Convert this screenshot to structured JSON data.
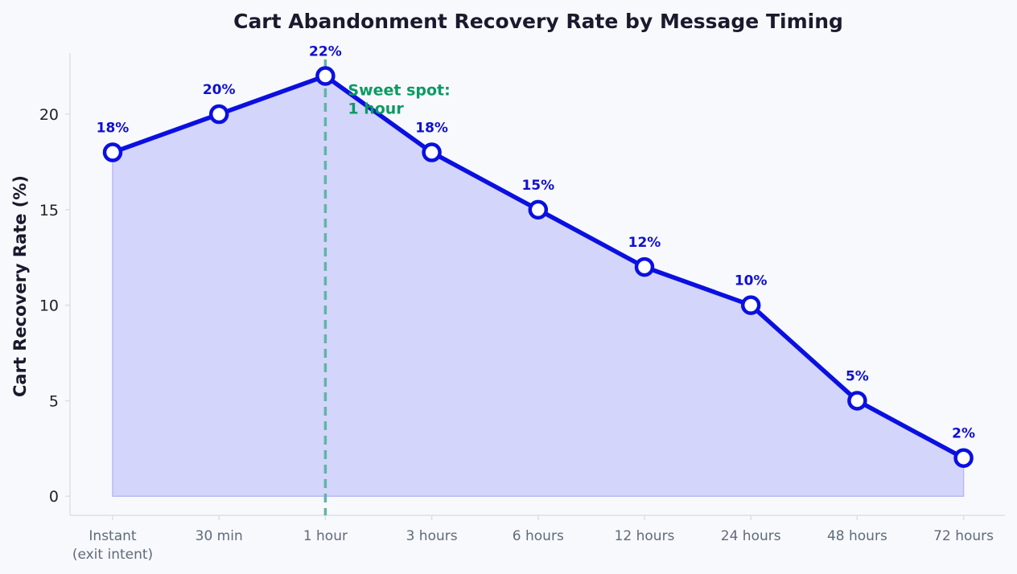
{
  "chart_data": {
    "type": "area",
    "title": "Cart Abandonment Recovery Rate by Message Timing",
    "xlabel": "",
    "ylabel": "Cart Recovery Rate (%)",
    "categories": [
      "Instant\n(exit intent)",
      "30 min",
      "1 hour",
      "3 hours",
      "6 hours",
      "12 hours",
      "24 hours",
      "48 hours",
      "72 hours"
    ],
    "values": [
      18,
      20,
      22,
      18,
      15,
      12,
      10,
      5,
      2
    ],
    "data_labels": [
      "18%",
      "20%",
      "22%",
      "18%",
      "15%",
      "12%",
      "10%",
      "5%",
      "2%"
    ],
    "y_ticks": [
      0,
      5,
      10,
      15,
      20
    ],
    "ylim": [
      -1.0,
      23.2
    ],
    "grid": false,
    "legend": "none",
    "annotation": {
      "text": "Sweet spot:\n1 hour",
      "category_index": 2
    },
    "colors": {
      "line": "#0a10e0",
      "fill": "#d4d5fa",
      "fill_edge": "#b9baf5",
      "marker_face": "#ffffff",
      "label": "#1010d0",
      "reference_line": "#5fb5a8",
      "annotation": "#0b9a63",
      "axis": "#dcdfe6",
      "background": "#f8f9fd"
    }
  }
}
